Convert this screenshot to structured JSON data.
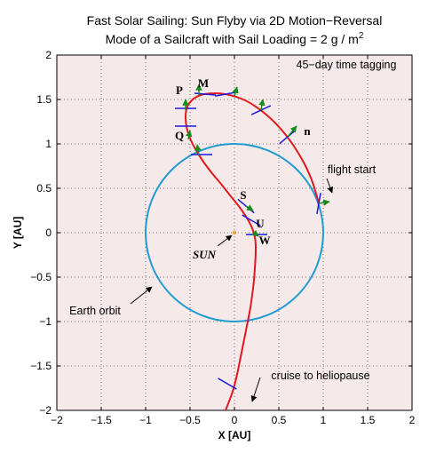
{
  "chart_data": {
    "type": "line",
    "title": "Fast Solar Sailing: Sun Flyby via 2D Motion−Reversal",
    "subtitle": "Mode of a Sailcraft with Sail Loading = 2 g / m",
    "subtitle_sup": "2",
    "xlabel": "X  [AU]",
    "ylabel": "Y  [AU]",
    "xlim": [
      -2,
      2
    ],
    "ylim": [
      -2,
      2
    ],
    "xticks": [
      -2,
      -1.5,
      -1,
      -0.5,
      0,
      0.5,
      1,
      1.5,
      2
    ],
    "yticks": [
      -2,
      -1.5,
      -1,
      -0.5,
      0,
      0.5,
      1,
      1.5,
      2
    ],
    "xtick_labels": [
      "−2",
      "−1.5",
      "−1",
      "−0.5",
      "0",
      "0.5",
      "1",
      "1.5",
      "2"
    ],
    "ytick_labels": [
      "−2",
      "−1.5",
      "−1",
      "−0.5",
      "0",
      "0.5",
      "1",
      "1.5",
      "2"
    ],
    "grid": true,
    "background_color": "#f5e9e9",
    "series": [
      {
        "role": "earth-orbit",
        "color": "#1f9bd1",
        "shape": "circle",
        "center": [
          0,
          0
        ],
        "radius": 1
      },
      {
        "role": "trajectory",
        "color": "#e0191e",
        "x": [
          0.95,
          0.9,
          0.82,
          0.72,
          0.6,
          0.45,
          0.3,
          0.15,
          0.0,
          -0.15,
          -0.28,
          -0.4,
          -0.5,
          -0.55,
          -0.55,
          -0.5,
          -0.4,
          -0.28,
          -0.15,
          -0.05,
          0.05,
          0.12,
          0.18,
          0.22,
          0.24,
          0.24,
          0.23,
          0.22,
          0.2,
          0.18,
          0.15,
          0.12,
          0.09,
          0.06,
          0.03,
          0.0,
          -0.03,
          -0.08,
          -0.12,
          -0.15
        ],
        "y": [
          0.33,
          0.52,
          0.72,
          0.9,
          1.08,
          1.25,
          1.38,
          1.48,
          1.54,
          1.57,
          1.57,
          1.55,
          1.48,
          1.38,
          1.22,
          1.05,
          0.87,
          0.7,
          0.55,
          0.42,
          0.3,
          0.2,
          0.1,
          0.0,
          -0.1,
          -0.25,
          -0.4,
          -0.55,
          -0.7,
          -0.85,
          -1.0,
          -1.15,
          -1.3,
          -1.45,
          -1.6,
          -1.72,
          -1.82,
          -1.95,
          -2.05,
          -2.15
        ]
      }
    ],
    "time_tags": [
      {
        "x": 0.95,
        "y": 0.33,
        "angle": 80
      },
      {
        "x": 0.6,
        "y": 1.08,
        "angle": 40
      },
      {
        "x": 0.3,
        "y": 1.38,
        "angle": 25
      },
      {
        "x": -0.1,
        "y": 1.56,
        "angle": 10
      },
      {
        "x": -0.33,
        "y": 1.56,
        "angle": -5
      },
      {
        "x": -0.55,
        "y": 1.4,
        "angle": 0
      },
      {
        "x": -0.55,
        "y": 1.2,
        "angle": 0
      },
      {
        "x": -0.37,
        "y": 0.88,
        "angle": 0
      },
      {
        "x": 0.13,
        "y": 0.3,
        "angle": -40
      },
      {
        "x": 0.19,
        "y": 0.14,
        "angle": -30
      },
      {
        "x": 0.25,
        "y": -0.02,
        "angle": 0
      },
      {
        "x": -0.08,
        "y": -1.7,
        "angle": -30
      }
    ],
    "sail_arrows": [
      {
        "x": 0.95,
        "y": 0.33,
        "dx": 0.12,
        "dy": 0.02
      },
      {
        "x": 0.6,
        "y": 1.08,
        "dx": 0.1,
        "dy": 0.12
      },
      {
        "x": 0.3,
        "y": 1.38,
        "dx": 0.02,
        "dy": 0.12
      },
      {
        "x": 0.0,
        "y": 1.54,
        "dx": 0.03,
        "dy": 0.1
      },
      {
        "x": -0.4,
        "y": 1.55,
        "dx": 0.0,
        "dy": 0.12
      },
      {
        "x": -0.55,
        "y": 1.38,
        "dx": 0.0,
        "dy": 0.12
      },
      {
        "x": -0.52,
        "y": 1.05,
        "dx": 0.02,
        "dy": 0.1
      },
      {
        "x": -0.4,
        "y": 0.87,
        "dx": -0.02,
        "dy": 0.12
      },
      {
        "x": 0.13,
        "y": 0.3,
        "dx": 0.08,
        "dy": -0.05
      },
      {
        "x": 0.22,
        "y": 0.0,
        "dx": 0.05,
        "dy": -0.04
      }
    ],
    "sun": {
      "x": 0,
      "y": 0,
      "color": "#f2a13a"
    },
    "point_labels": [
      {
        "text": "M",
        "x": -0.35,
        "y": 1.64
      },
      {
        "text": "P",
        "x": -0.62,
        "y": 1.56
      },
      {
        "text": "Q",
        "x": -0.62,
        "y": 1.05
      },
      {
        "text": "n",
        "x": 0.82,
        "y": 1.1
      },
      {
        "text": "S",
        "x": 0.1,
        "y": 0.38
      },
      {
        "text": "U",
        "x": 0.29,
        "y": 0.06
      },
      {
        "text": "W",
        "x": 0.34,
        "y": -0.13
      }
    ],
    "sun_label": {
      "text": "SUN",
      "x": -0.34,
      "y": -0.25
    },
    "annotations": [
      {
        "text": "45−day time tagging",
        "x": 1.26,
        "y": 1.85
      },
      {
        "text": "flight start",
        "x": 1.32,
        "y": 0.67,
        "arrow_to": [
          1.1,
          0.45
        ]
      },
      {
        "text": "Earth orbit",
        "x": -1.57,
        "y": -0.92,
        "arrow_to": [
          -0.93,
          -0.61
        ]
      },
      {
        "text": "cruise to heliopause",
        "x": 0.97,
        "y": -1.65,
        "arrow_to": [
          0.2,
          -1.9
        ]
      },
      {
        "text": "",
        "x": -0.35,
        "y": -0.25,
        "arrow_to": [
          -0.03,
          -0.03
        ]
      }
    ]
  }
}
